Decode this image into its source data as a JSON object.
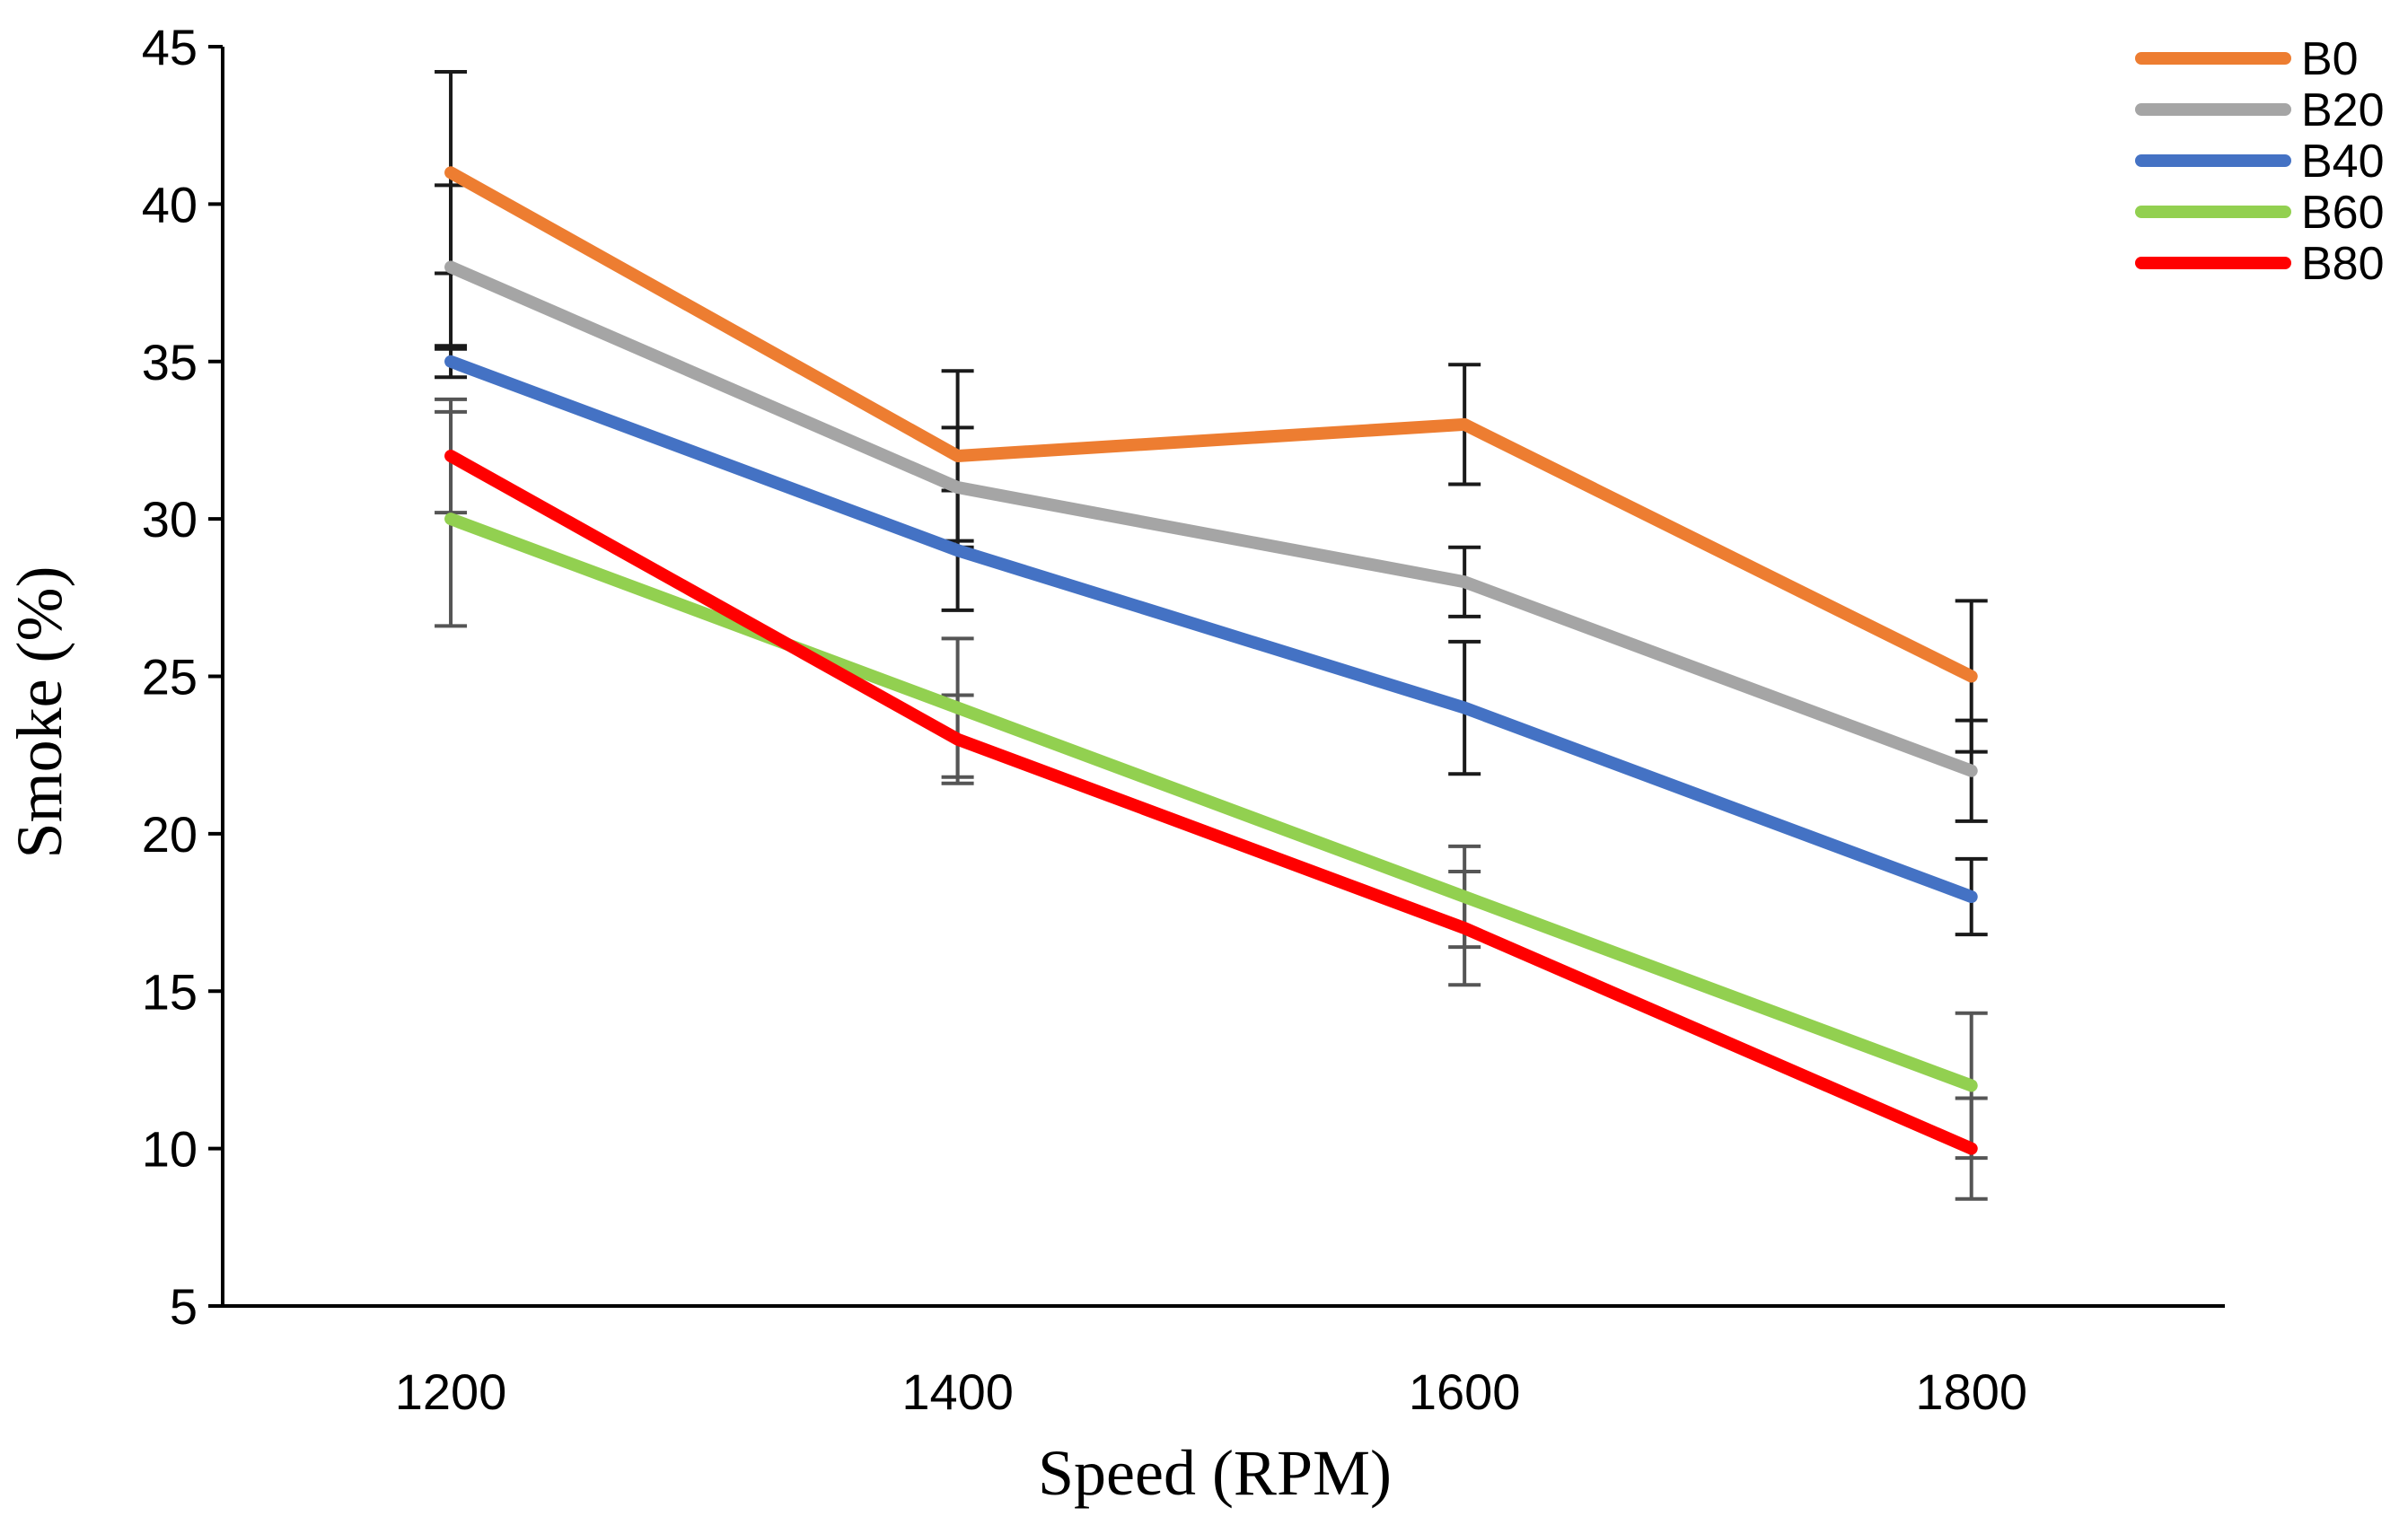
{
  "chart_data": {
    "type": "line",
    "title": "",
    "xlabel": "Speed (RPM)",
    "ylabel": "Smoke (%)",
    "categories": [
      "1200",
      "1400",
      "1600",
      "1800"
    ],
    "x": [
      1200,
      1400,
      1600,
      1800
    ],
    "xlim": [
      1110,
      1900
    ],
    "ylim": [
      5,
      45
    ],
    "yticks": [
      5,
      10,
      15,
      20,
      25,
      30,
      35,
      40,
      45
    ],
    "yticklabels": [
      "5",
      "10",
      "15",
      "20",
      "25",
      "30",
      "35",
      "40",
      "45"
    ],
    "grid": false,
    "legend_position": "top-right",
    "series": [
      {
        "name": "B0",
        "color": "#ED7D31",
        "values": [
          41,
          32,
          33,
          25
        ],
        "error": [
          3.2,
          2.7,
          1.9,
          2.4
        ],
        "errorbar_color": "#1a1a1a"
      },
      {
        "name": "B20",
        "color": "#A5A5A5",
        "values": [
          38,
          31,
          28,
          22
        ],
        "error": [
          2.6,
          1.9,
          1.1,
          1.6
        ],
        "errorbar_color": "#1a1a1a"
      },
      {
        "name": "B40",
        "color": "#4472C4",
        "values": [
          35,
          29,
          24,
          18
        ],
        "error": [
          0.5,
          1.9,
          2.1,
          1.2
        ],
        "errorbar_color": "#1a1a1a"
      },
      {
        "name": "B60",
        "color": "#92D050",
        "values": [
          30,
          24,
          18,
          12
        ],
        "error": [
          3.4,
          2.2,
          1.6,
          2.3
        ],
        "errorbar_color": "#555555"
      },
      {
        "name": "B80",
        "color": "#FF0000",
        "values": [
          32,
          23,
          17,
          10
        ],
        "error": [
          1.8,
          1.4,
          1.8,
          1.6
        ],
        "errorbar_color": "#555555"
      }
    ]
  }
}
